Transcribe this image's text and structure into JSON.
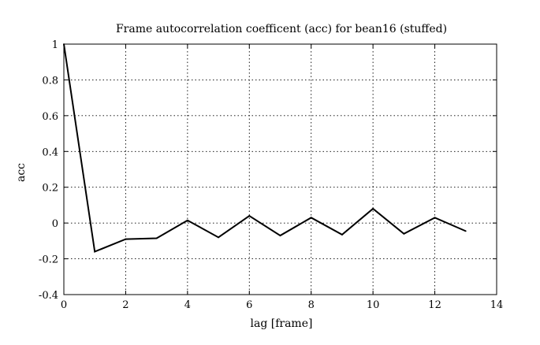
{
  "chart_data": {
    "type": "line",
    "title": "Frame autocorrelation coefficent (acc) for bean16 (stuffed)",
    "xlabel": "lag [frame]",
    "ylabel": "acc",
    "xlim": [
      0,
      14
    ],
    "ylim": [
      -0.4,
      1
    ],
    "x_ticks": [
      0,
      2,
      4,
      6,
      8,
      10,
      12,
      14
    ],
    "y_ticks": [
      -0.4,
      -0.2,
      0,
      0.2,
      0.4,
      0.6,
      0.8,
      1
    ],
    "x_tick_labels": [
      "0",
      "2",
      "4",
      "6",
      "8",
      "10",
      "12",
      "14"
    ],
    "y_tick_labels": [
      "-0.4",
      "-0.2",
      "0",
      "0.2",
      "0.4",
      "0.6",
      "0.8",
      "1"
    ],
    "grid": true,
    "grid_style": "dotted",
    "series": [
      {
        "color": "#000000",
        "x": [
          0,
          1,
          2,
          3,
          4,
          5,
          6,
          7,
          8,
          9,
          10,
          11,
          12,
          13
        ],
        "values": [
          1.0,
          -0.16,
          -0.09,
          -0.085,
          0.015,
          -0.08,
          0.04,
          -0.07,
          0.03,
          -0.065,
          0.08,
          -0.06,
          0.03,
          -0.045
        ]
      }
    ]
  }
}
